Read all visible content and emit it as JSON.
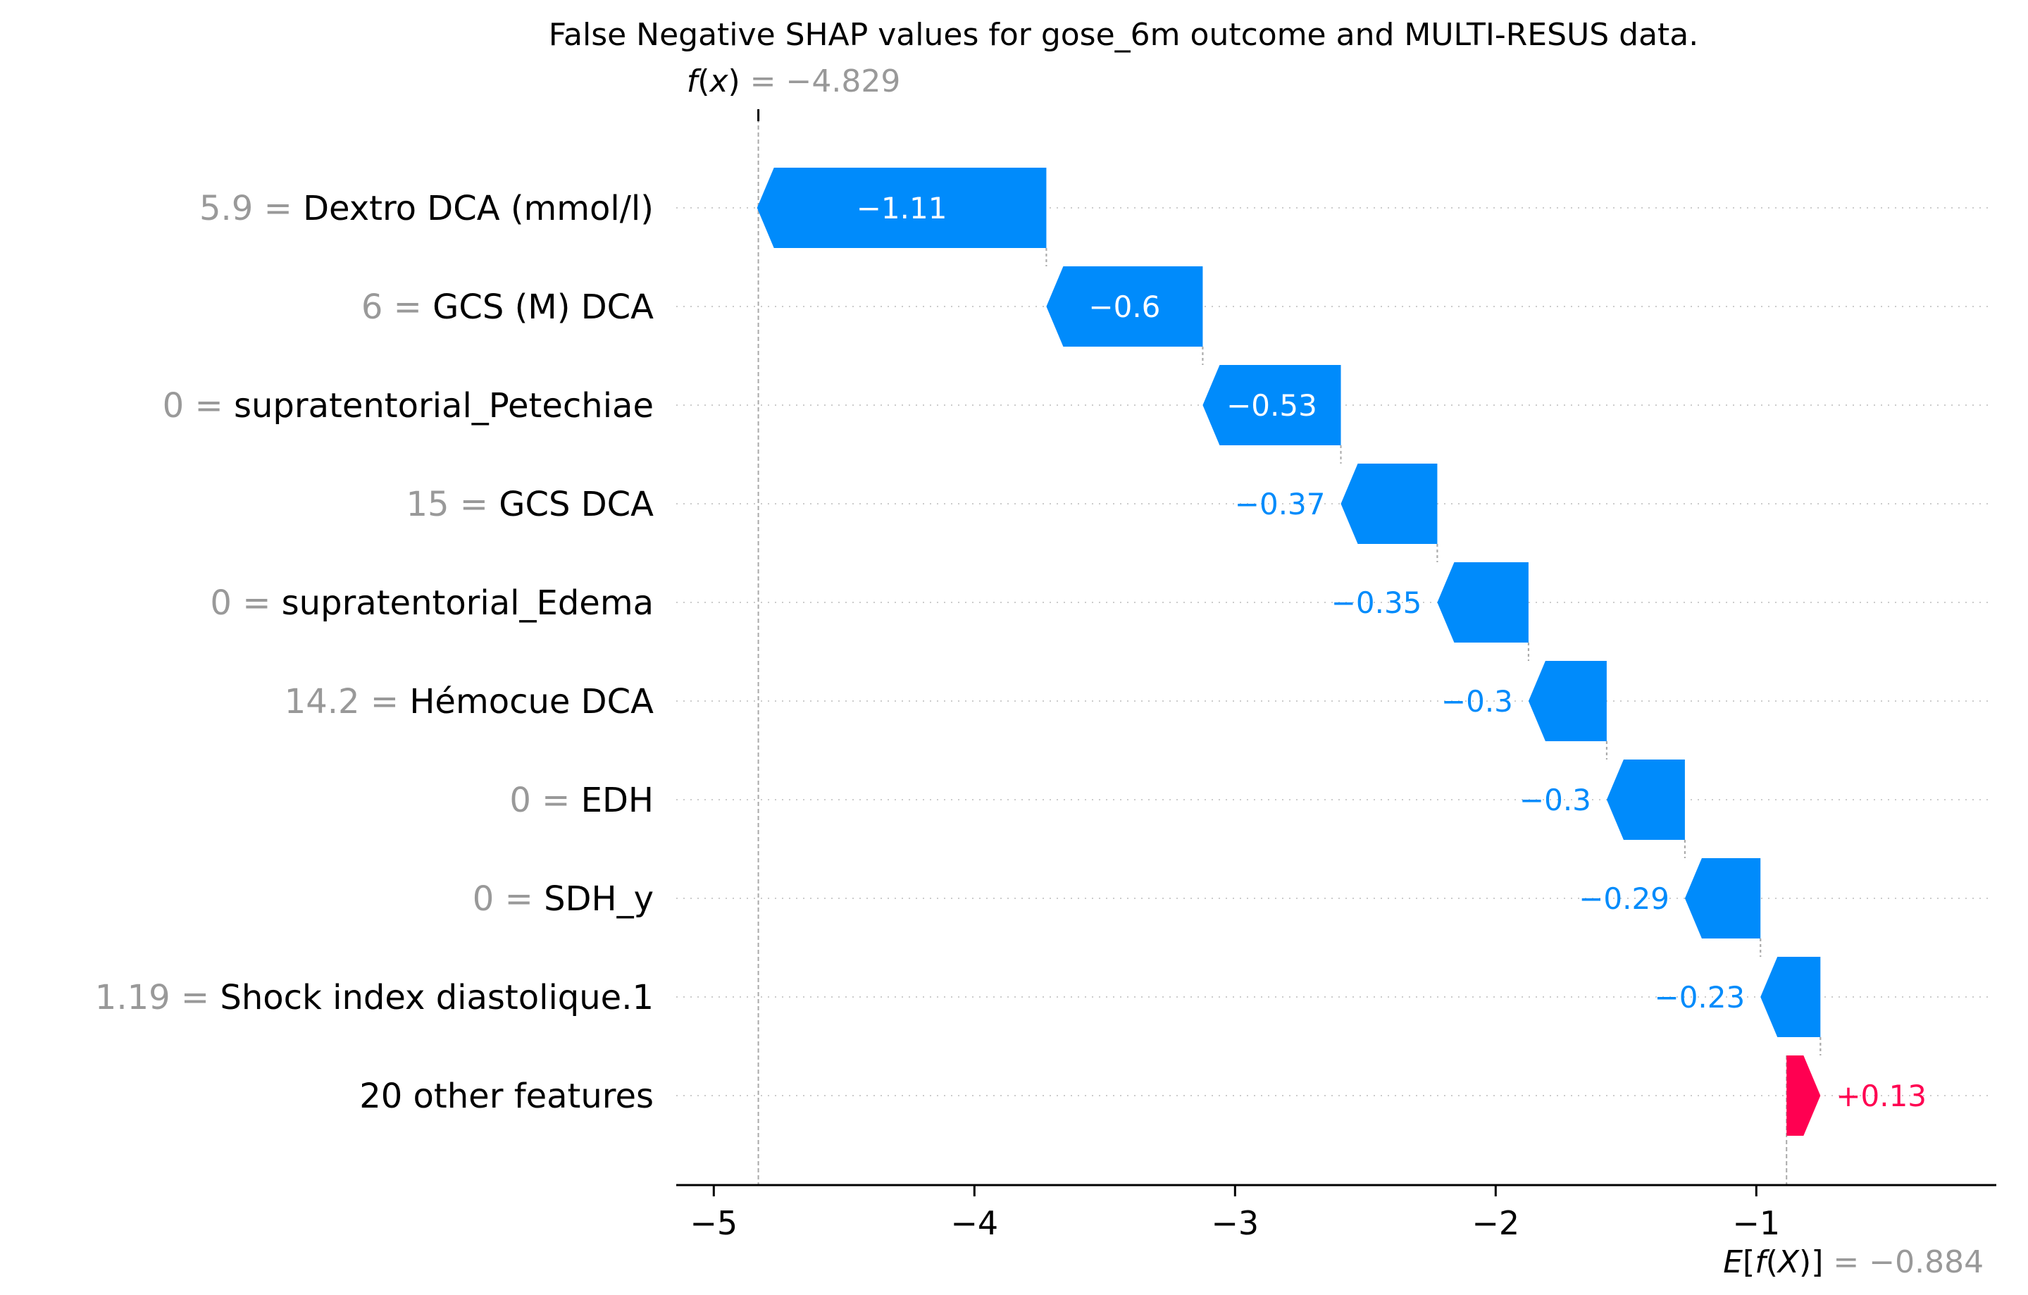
{
  "chart_data": {
    "type": "waterfall",
    "title": "False Negative SHAP values for gose_6m outcome and MULTI-RESUS data.",
    "fx": {
      "symbol_prefix": "f",
      "symbol_paren_open": "(",
      "symbol_var": "x",
      "symbol_paren_close": ")",
      "value_text": "= −4.829",
      "value": -4.829
    },
    "efx": {
      "symbol_prefix": "E",
      "symbol_open": "[",
      "symbol_f": "f",
      "symbol_inner_open": "(",
      "symbol_var": "X",
      "symbol_inner_close": ")",
      "symbol_close": "]",
      "value_text": "= −0.884",
      "value": -0.884
    },
    "rows": [
      {
        "feature_value": "5.9",
        "feature": "Dextro DCA (mmol/l)",
        "shap": -1.11,
        "label": "−1.11",
        "label_inside": true
      },
      {
        "feature_value": "6",
        "feature": "GCS (M) DCA",
        "shap": -0.6,
        "label": "−0.6",
        "label_inside": true
      },
      {
        "feature_value": "0",
        "feature": "supratentorial_Petechiae",
        "shap": -0.53,
        "label": "−0.53",
        "label_inside": true
      },
      {
        "feature_value": "15",
        "feature": "GCS DCA",
        "shap": -0.37,
        "label": "−0.37",
        "label_inside": false
      },
      {
        "feature_value": "0",
        "feature": "supratentorial_Edema",
        "shap": -0.35,
        "label": "−0.35",
        "label_inside": false
      },
      {
        "feature_value": "14.2",
        "feature": "Hémocue DCA",
        "shap": -0.3,
        "label": "−0.3",
        "label_inside": false
      },
      {
        "feature_value": "0",
        "feature": "EDH",
        "shap": -0.3,
        "label": "−0.3",
        "label_inside": false
      },
      {
        "feature_value": "0",
        "feature": "SDH_y",
        "shap": -0.29,
        "label": "−0.29",
        "label_inside": false
      },
      {
        "feature_value": "1.19",
        "feature": "Shock index diastolique.1",
        "shap": -0.23,
        "label": "−0.23",
        "label_inside": false
      },
      {
        "feature_value": "",
        "feature": "20 other features",
        "shap": 0.13,
        "label": "+0.13",
        "label_inside": false
      }
    ],
    "xaxis": {
      "ticks": [
        -5,
        -4,
        -3,
        -2,
        -1
      ],
      "tick_labels": [
        "−5",
        "−4",
        "−3",
        "−2",
        "−1"
      ],
      "range": [
        -5.09,
        -0.09
      ]
    },
    "colors": {
      "negative": "#008bfb",
      "positive": "#ff0051",
      "value_gray": "#999999",
      "grid": "#cccccc",
      "text": "#000000"
    }
  }
}
